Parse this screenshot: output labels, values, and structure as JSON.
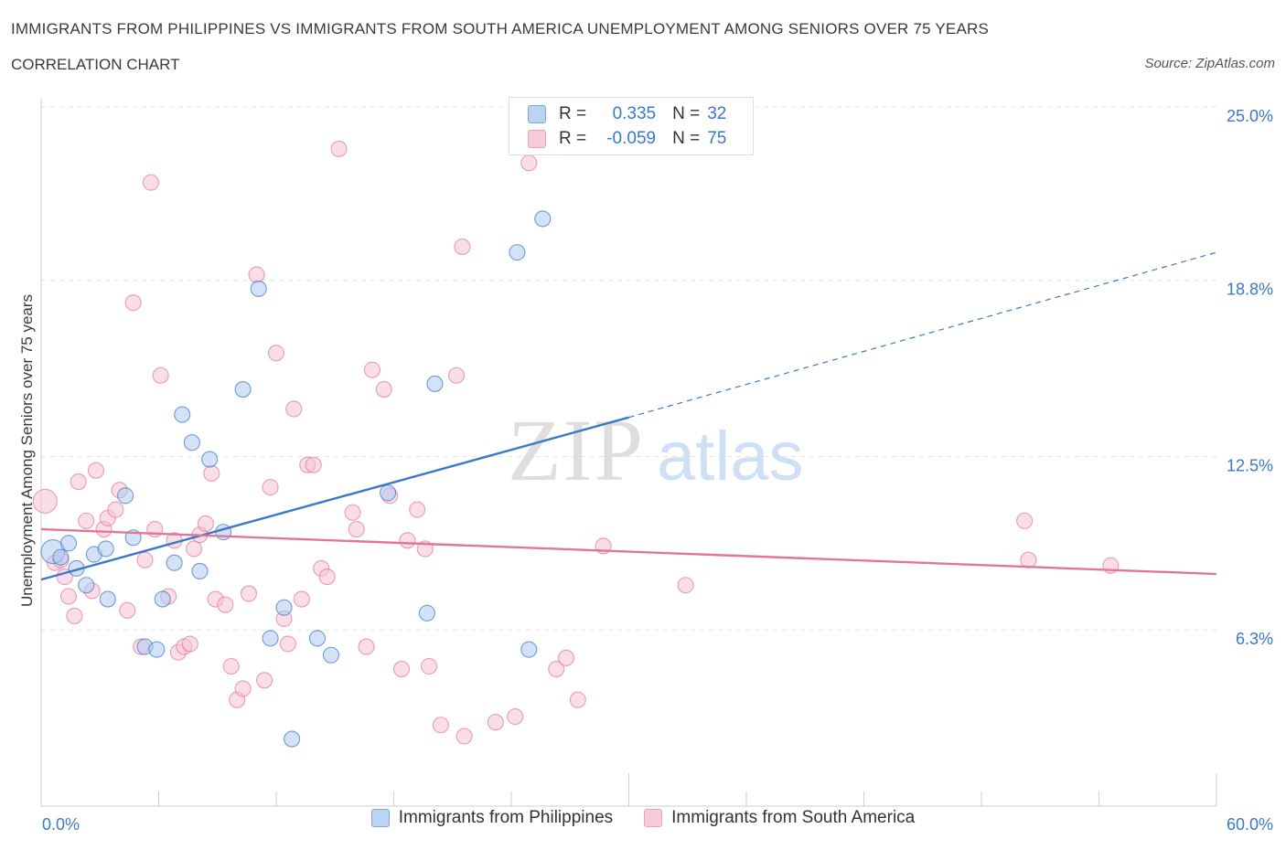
{
  "header": {
    "title": "IMMIGRANTS FROM PHILIPPINES VS IMMIGRANTS FROM SOUTH AMERICA UNEMPLOYMENT AMONG SENIORS OVER 75 YEARS",
    "subtitle": "CORRELATION CHART",
    "source": "Source: ZipAtlas.com"
  },
  "watermark": {
    "zip": "ZIP",
    "atlas": "atlas"
  },
  "stats": [
    {
      "r_label": "R =",
      "r_value": "0.335",
      "n_label": "N =",
      "n_value": "32",
      "color": "#3b78c8"
    },
    {
      "r_label": "R =",
      "r_value": "-0.059",
      "n_label": "N =",
      "n_value": "75",
      "color": "#e0779a"
    }
  ],
  "chart_data": {
    "type": "scatter",
    "xlabel": "",
    "ylabel": "Unemployment Among Seniors over 75 years",
    "xlim": [
      0,
      60
    ],
    "ylim": [
      0,
      25
    ],
    "x_tick_labels": [
      "0.0%",
      "60.0%"
    ],
    "y_tick_labels": [
      {
        "value": 25.0,
        "label": "25.0%"
      },
      {
        "value": 18.8,
        "label": "18.8%"
      },
      {
        "value": 12.5,
        "label": "12.5%"
      },
      {
        "value": 6.3,
        "label": "6.3%"
      }
    ],
    "grid": true,
    "legend_position": "bottom",
    "series": [
      {
        "name": "Immigrants from Philippines",
        "color": "#3b78c8",
        "fill": "#aecbf0",
        "trend": {
          "x": [
            0,
            30
          ],
          "y": [
            8.1,
            13.9
          ],
          "dashed_to": [
            60,
            19.8
          ]
        },
        "points": [
          [
            0.6,
            9.1
          ],
          [
            1.0,
            8.9
          ],
          [
            1.4,
            9.4
          ],
          [
            1.8,
            8.5
          ],
          [
            2.3,
            7.9
          ],
          [
            2.7,
            9.0
          ],
          [
            3.4,
            7.4
          ],
          [
            3.3,
            9.2
          ],
          [
            4.3,
            11.1
          ],
          [
            4.7,
            9.6
          ],
          [
            5.3,
            5.7
          ],
          [
            5.9,
            5.6
          ],
          [
            6.2,
            7.4
          ],
          [
            6.8,
            8.7
          ],
          [
            7.2,
            14.0
          ],
          [
            7.7,
            13.0
          ],
          [
            8.1,
            8.4
          ],
          [
            8.6,
            12.4
          ],
          [
            9.3,
            9.8
          ],
          [
            10.3,
            14.9
          ],
          [
            11.1,
            18.5
          ],
          [
            11.7,
            6.0
          ],
          [
            12.4,
            7.1
          ],
          [
            12.8,
            2.4
          ],
          [
            14.1,
            6.0
          ],
          [
            14.8,
            5.4
          ],
          [
            17.7,
            11.2
          ],
          [
            19.7,
            6.9
          ],
          [
            20.1,
            15.1
          ],
          [
            24.3,
            19.8
          ],
          [
            24.9,
            5.6
          ],
          [
            25.6,
            21.0
          ]
        ]
      },
      {
        "name": "Immigrants from South America",
        "color": "#e0779a",
        "fill": "#f5c3d3",
        "trend": {
          "x": [
            0,
            60
          ],
          "y": [
            9.9,
            8.3
          ]
        },
        "points": [
          [
            0.2,
            10.9
          ],
          [
            0.7,
            8.7
          ],
          [
            1.0,
            8.8
          ],
          [
            1.2,
            8.2
          ],
          [
            1.4,
            7.5
          ],
          [
            1.7,
            6.8
          ],
          [
            1.9,
            11.6
          ],
          [
            2.3,
            10.2
          ],
          [
            2.6,
            7.7
          ],
          [
            2.8,
            12.0
          ],
          [
            3.2,
            9.9
          ],
          [
            3.4,
            10.3
          ],
          [
            3.8,
            10.6
          ],
          [
            4.0,
            11.3
          ],
          [
            4.4,
            7.0
          ],
          [
            4.7,
            18.0
          ],
          [
            5.1,
            5.7
          ],
          [
            5.3,
            8.8
          ],
          [
            5.6,
            22.3
          ],
          [
            5.8,
            9.9
          ],
          [
            6.1,
            15.4
          ],
          [
            6.5,
            7.5
          ],
          [
            6.8,
            9.5
          ],
          [
            7.0,
            5.5
          ],
          [
            7.3,
            5.7
          ],
          [
            7.6,
            5.8
          ],
          [
            7.8,
            9.2
          ],
          [
            8.1,
            9.7
          ],
          [
            8.4,
            10.1
          ],
          [
            8.7,
            11.9
          ],
          [
            8.9,
            7.4
          ],
          [
            9.4,
            7.2
          ],
          [
            9.7,
            5.0
          ],
          [
            10.0,
            3.8
          ],
          [
            10.3,
            4.2
          ],
          [
            10.6,
            7.6
          ],
          [
            11.0,
            19.0
          ],
          [
            11.4,
            4.5
          ],
          [
            11.7,
            11.4
          ],
          [
            12.0,
            16.2
          ],
          [
            12.4,
            6.7
          ],
          [
            12.6,
            5.8
          ],
          [
            12.9,
            14.2
          ],
          [
            13.3,
            7.4
          ],
          [
            13.6,
            12.2
          ],
          [
            13.9,
            12.2
          ],
          [
            14.3,
            8.5
          ],
          [
            14.6,
            8.2
          ],
          [
            15.2,
            23.5
          ],
          [
            15.9,
            10.5
          ],
          [
            16.1,
            9.9
          ],
          [
            16.6,
            5.7
          ],
          [
            16.9,
            15.6
          ],
          [
            17.5,
            14.9
          ],
          [
            17.8,
            11.1
          ],
          [
            18.4,
            4.9
          ],
          [
            18.7,
            9.5
          ],
          [
            19.2,
            10.6
          ],
          [
            19.6,
            9.2
          ],
          [
            19.8,
            5.0
          ],
          [
            20.4,
            2.9
          ],
          [
            21.2,
            15.4
          ],
          [
            21.5,
            20.0
          ],
          [
            21.6,
            2.5
          ],
          [
            23.2,
            3.0
          ],
          [
            24.2,
            3.2
          ],
          [
            24.9,
            23.0
          ],
          [
            26.3,
            4.9
          ],
          [
            26.8,
            5.3
          ],
          [
            27.4,
            3.8
          ],
          [
            28.7,
            9.3
          ],
          [
            32.9,
            7.9
          ],
          [
            50.2,
            10.2
          ],
          [
            50.4,
            8.8
          ],
          [
            54.6,
            8.6
          ]
        ]
      }
    ]
  }
}
